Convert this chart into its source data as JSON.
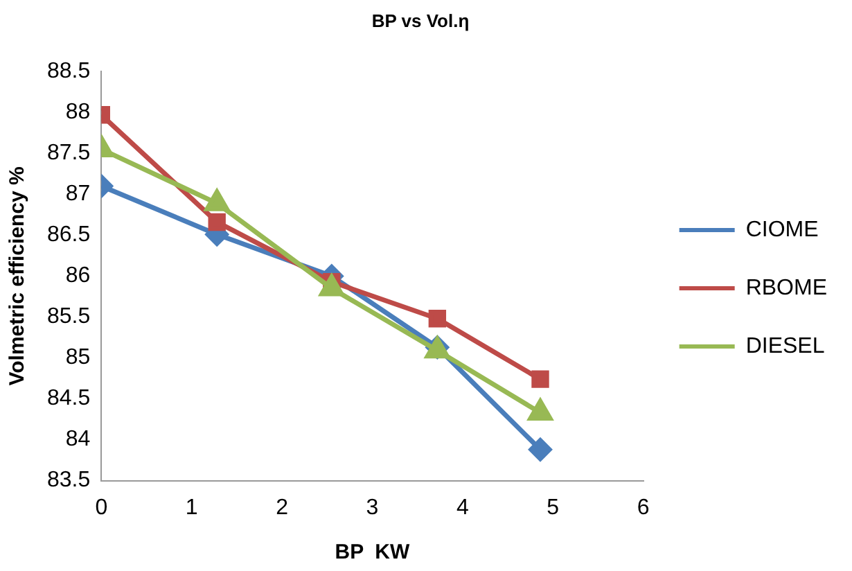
{
  "chart_data": {
    "type": "line",
    "title": "BP vs Vol.η",
    "xlabel": "BP  KW",
    "ylabel": "Volmetric efficiency %",
    "x": [
      0,
      1.28,
      2.55,
      3.72,
      4.86
    ],
    "series": [
      {
        "name": "CIOME",
        "color": "#4a7ebb",
        "marker": "diamond",
        "values": [
          87.1,
          86.51,
          86.0,
          85.13,
          83.88
        ]
      },
      {
        "name": "RBOME",
        "color": "#be4b48",
        "marker": "square",
        "values": [
          87.97,
          86.66,
          85.93,
          85.48,
          84.74
        ]
      },
      {
        "name": "DIESEL",
        "color": "#98b954",
        "marker": "triangle",
        "values": [
          87.55,
          86.89,
          85.85,
          85.09,
          84.33
        ]
      }
    ],
    "xlim": [
      0,
      6
    ],
    "xticks": [
      0,
      1,
      2,
      3,
      4,
      5,
      6
    ],
    "ylim": [
      83.5,
      88.5
    ],
    "yticks": [
      83.5,
      84,
      84.5,
      85,
      85.5,
      86,
      86.5,
      87,
      87.5,
      88,
      88.5
    ],
    "grid": false,
    "legend": "right"
  }
}
